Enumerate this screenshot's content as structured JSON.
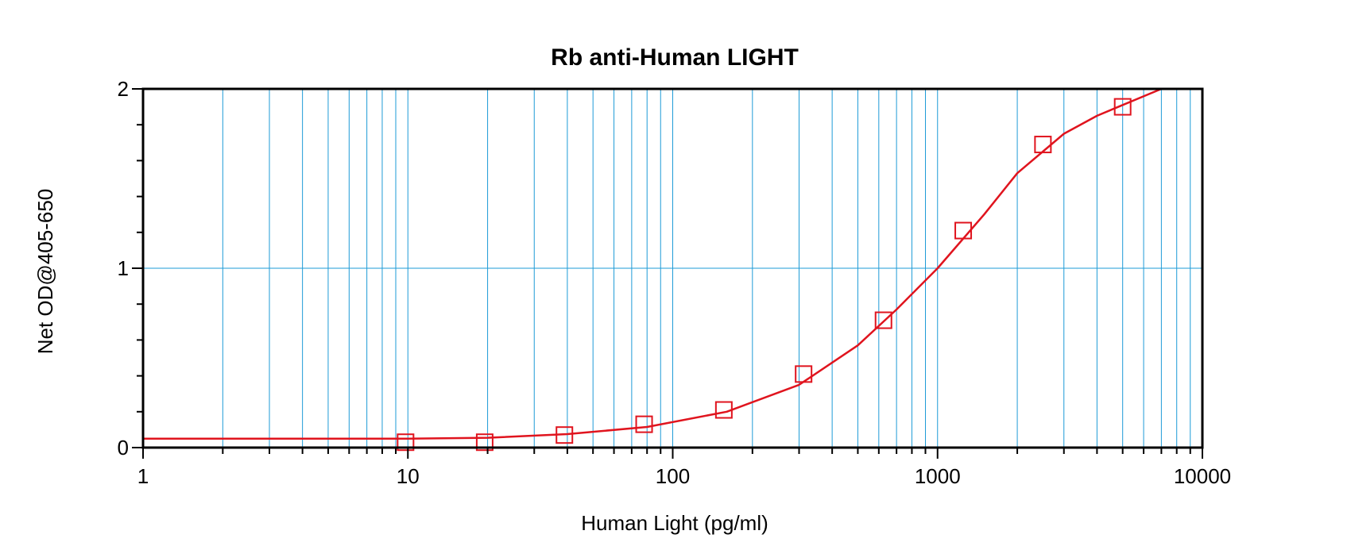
{
  "chart_data": {
    "type": "scatter",
    "title": "Rb anti-Human LIGHT",
    "xlabel": "Human Light (pg/ml)",
    "ylabel": "Net OD@405-650",
    "x_scale": "log",
    "xlim": [
      1,
      10000
    ],
    "ylim": [
      0,
      2
    ],
    "x_ticks": [
      1,
      10,
      100,
      1000,
      10000
    ],
    "x_tick_labels": [
      "1",
      "10",
      "100",
      "1000",
      "10000"
    ],
    "y_ticks": [
      0,
      1,
      2
    ],
    "y_tick_labels": [
      "0",
      "1",
      "2"
    ],
    "grid": true,
    "series": [
      {
        "kind": "points",
        "marker": "open-square",
        "x": [
          9.8,
          19.5,
          39,
          78,
          156,
          312,
          625,
          1250,
          2500,
          5000
        ],
        "y": [
          0.03,
          0.03,
          0.07,
          0.13,
          0.21,
          0.41,
          0.71,
          1.21,
          1.69,
          1.9
        ]
      },
      {
        "kind": "fit-curve",
        "x": [
          1,
          10,
          20,
          40,
          80,
          160,
          300,
          500,
          700,
          1000,
          1500,
          2000,
          3000,
          4000,
          5000,
          7000
        ],
        "y": [
          0.05,
          0.05,
          0.055,
          0.075,
          0.115,
          0.2,
          0.35,
          0.57,
          0.77,
          1.0,
          1.3,
          1.53,
          1.75,
          1.85,
          1.91,
          2.0
        ]
      }
    ],
    "colors": {
      "grid": "#1e9bd7",
      "series": "#e0141e",
      "axis": "#000000"
    }
  }
}
